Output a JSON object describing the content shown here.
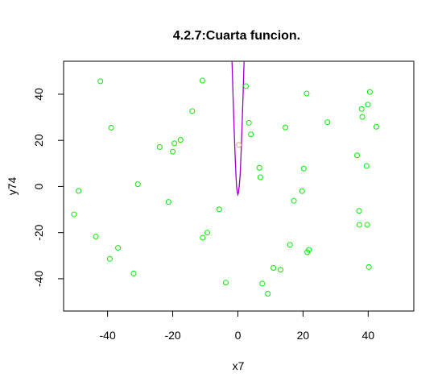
{
  "chart_data": {
    "type": "scatter",
    "title": "4.2.7:Cuarta funcion.",
    "xlabel": "x7",
    "ylabel": "y74",
    "xlim": [
      -53.5,
      54.0
    ],
    "ylim": [
      -54.0,
      54.3
    ],
    "xticks": [
      "-40",
      "-20",
      "0",
      "20",
      "40"
    ],
    "xtick_values": [
      -40,
      -20,
      0,
      20,
      40
    ],
    "yticks": [
      "-40",
      "-20",
      "0",
      "20",
      "40"
    ],
    "ytick_values": [
      -40,
      -20,
      0,
      20,
      40
    ],
    "grid": false,
    "colors": {
      "points": "#00ee00",
      "highlight": "#e0a060",
      "curve": "#9900cc",
      "axes": "#000000"
    },
    "points": [
      {
        "x": -42.2,
        "y": 45.6
      },
      {
        "x": -10.9,
        "y": 45.9
      },
      {
        "x": 2.5,
        "y": 43.5
      },
      {
        "x": 40.5,
        "y": 41.0
      },
      {
        "x": 21.1,
        "y": 40.3
      },
      {
        "x": 39.9,
        "y": 35.5
      },
      {
        "x": 38.0,
        "y": 33.6
      },
      {
        "x": -14.0,
        "y": 32.7
      },
      {
        "x": 38.2,
        "y": 30.2
      },
      {
        "x": 27.5,
        "y": 27.9
      },
      {
        "x": 3.4,
        "y": 27.6
      },
      {
        "x": 42.5,
        "y": 25.9
      },
      {
        "x": -38.9,
        "y": 25.5
      },
      {
        "x": 14.6,
        "y": 25.6
      },
      {
        "x": 4.0,
        "y": 22.6
      },
      {
        "x": -17.6,
        "y": 20.2
      },
      {
        "x": -19.5,
        "y": 18.7
      },
      {
        "x": -24.0,
        "y": 17.1
      },
      {
        "x": -20.0,
        "y": 15.1
      },
      {
        "x": 36.6,
        "y": 13.5
      },
      {
        "x": 39.5,
        "y": 8.9
      },
      {
        "x": 6.6,
        "y": 8.1
      },
      {
        "x": 20.2,
        "y": 7.8
      },
      {
        "x": 6.9,
        "y": 4.0
      },
      {
        "x": -30.7,
        "y": 1.0
      },
      {
        "x": -48.9,
        "y": -1.9
      },
      {
        "x": 19.7,
        "y": -2.0
      },
      {
        "x": 17.2,
        "y": -6.2
      },
      {
        "x": -21.3,
        "y": -6.7
      },
      {
        "x": -5.7,
        "y": -9.9
      },
      {
        "x": 37.2,
        "y": -10.6
      },
      {
        "x": -50.3,
        "y": -12.1
      },
      {
        "x": 37.3,
        "y": -16.6
      },
      {
        "x": 39.7,
        "y": -16.6
      },
      {
        "x": -9.4,
        "y": -20.0
      },
      {
        "x": -43.6,
        "y": -21.7
      },
      {
        "x": -10.8,
        "y": -22.2
      },
      {
        "x": 16.0,
        "y": -25.3
      },
      {
        "x": -36.8,
        "y": -26.6
      },
      {
        "x": 21.8,
        "y": -27.5
      },
      {
        "x": 21.3,
        "y": -28.5
      },
      {
        "x": -39.3,
        "y": -31.4
      },
      {
        "x": 40.2,
        "y": -34.9
      },
      {
        "x": 10.9,
        "y": -35.3
      },
      {
        "x": 13.1,
        "y": -36.1
      },
      {
        "x": -32.0,
        "y": -37.7
      },
      {
        "x": -3.7,
        "y": -41.7
      },
      {
        "x": 7.5,
        "y": -42.1
      },
      {
        "x": 9.2,
        "y": -46.5
      }
    ],
    "highlight_point": {
      "x": 0.3,
      "y": 18.0
    },
    "curve": {
      "label": "",
      "x": [
        -1.8,
        -1.5,
        -1.2,
        -0.9,
        -0.6,
        -0.4,
        -0.2,
        0.0,
        0.2,
        0.4,
        0.7,
        1.0,
        1.3,
        1.6,
        1.9
      ],
      "y": [
        54.3,
        40.0,
        27.0,
        15.0,
        5.0,
        0.0,
        -2.5,
        -3.5,
        -2.5,
        0.0,
        5.0,
        15.0,
        27.0,
        40.0,
        54.3
      ]
    }
  }
}
